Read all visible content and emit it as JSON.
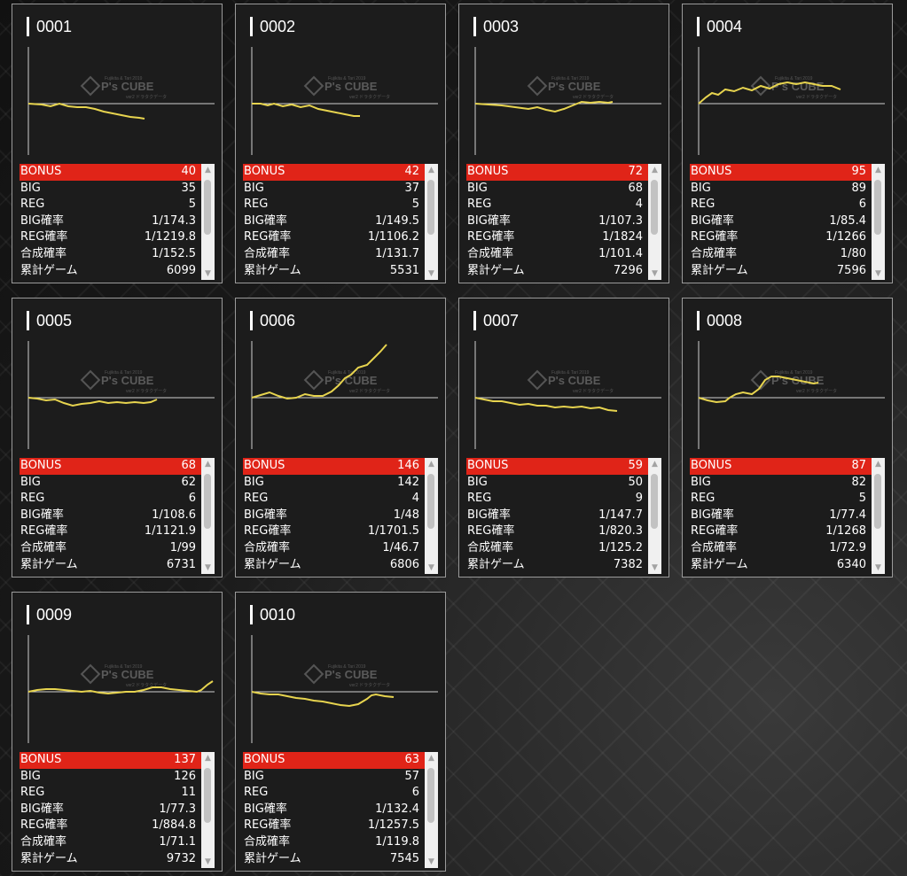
{
  "labels": {
    "bonus": "BONUS",
    "big": "BIG",
    "reg": "REG",
    "big_rate": "BIG確率",
    "reg_rate": "REG確率",
    "total_rate": "合成確率",
    "games": "累計ゲーム"
  },
  "watermark": {
    "brand": "P's CUBE",
    "line1": "Fujikita & Tari 2019",
    "line2": "ver2 ドラタクデータ"
  },
  "icons": {
    "scroll_up": "scroll-up-arrow-icon",
    "scroll_down": "scroll-down-arrow-icon"
  },
  "colors": {
    "bonus_row": "#e02418",
    "graph_line": "#e7d44f"
  },
  "machines": [
    {
      "id": "0001",
      "bonus": "40",
      "big": "35",
      "reg": "5",
      "big_rate": "1/174.3",
      "reg_rate": "1/1219.8",
      "total_rate": "1/152.5",
      "games": "6099"
    },
    {
      "id": "0002",
      "bonus": "42",
      "big": "37",
      "reg": "5",
      "big_rate": "1/149.5",
      "reg_rate": "1/1106.2",
      "total_rate": "1/131.7",
      "games": "5531"
    },
    {
      "id": "0003",
      "bonus": "72",
      "big": "68",
      "reg": "4",
      "big_rate": "1/107.3",
      "reg_rate": "1/1824",
      "total_rate": "1/101.4",
      "games": "7296"
    },
    {
      "id": "0004",
      "bonus": "95",
      "big": "89",
      "reg": "6",
      "big_rate": "1/85.4",
      "reg_rate": "1/1266",
      "total_rate": "1/80",
      "games": "7596"
    },
    {
      "id": "0005",
      "bonus": "68",
      "big": "62",
      "reg": "6",
      "big_rate": "1/108.6",
      "reg_rate": "1/1121.9",
      "total_rate": "1/99",
      "games": "6731"
    },
    {
      "id": "0006",
      "bonus": "146",
      "big": "142",
      "reg": "4",
      "big_rate": "1/48",
      "reg_rate": "1/1701.5",
      "total_rate": "1/46.7",
      "games": "6806"
    },
    {
      "id": "0007",
      "bonus": "59",
      "big": "50",
      "reg": "9",
      "big_rate": "1/147.7",
      "reg_rate": "1/820.3",
      "total_rate": "1/125.2",
      "games": "7382"
    },
    {
      "id": "0008",
      "bonus": "87",
      "big": "82",
      "reg": "5",
      "big_rate": "1/77.4",
      "reg_rate": "1/1268",
      "total_rate": "1/72.9",
      "games": "6340"
    },
    {
      "id": "0009",
      "bonus": "137",
      "big": "126",
      "reg": "11",
      "big_rate": "1/77.3",
      "reg_rate": "1/884.8",
      "total_rate": "1/71.1",
      "games": "9732"
    },
    {
      "id": "0010",
      "bonus": "63",
      "big": "57",
      "reg": "6",
      "big_rate": "1/132.4",
      "reg_rate": "1/1257.5",
      "total_rate": "1/119.8",
      "games": "7545"
    }
  ]
}
